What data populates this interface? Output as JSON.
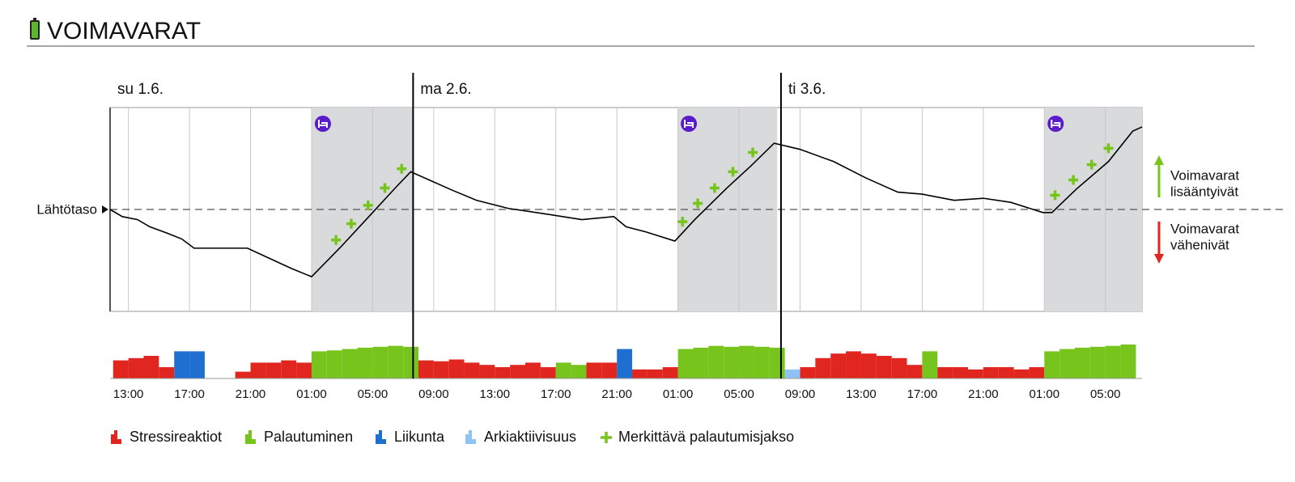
{
  "chart_data": {
    "type": "line",
    "title": "VOIMAVARAT",
    "baseline_label": "Lähtötaso",
    "baseline": 0,
    "xlim": [
      11.8,
      79.4
    ],
    "ylim": [
      -100,
      100
    ],
    "grid": true,
    "xticks": [
      {
        "value": 13,
        "label": "13:00"
      },
      {
        "value": 17,
        "label": "17:00"
      },
      {
        "value": 21,
        "label": "21:00"
      },
      {
        "value": 25,
        "label": "01:00"
      },
      {
        "value": 29,
        "label": "05:00"
      },
      {
        "value": 33,
        "label": "09:00"
      },
      {
        "value": 37,
        "label": "13:00"
      },
      {
        "value": 41,
        "label": "17:00"
      },
      {
        "value": 45,
        "label": "21:00"
      },
      {
        "value": 49,
        "label": "01:00"
      },
      {
        "value": 53,
        "label": "05:00"
      },
      {
        "value": 57,
        "label": "09:00"
      },
      {
        "value": 61,
        "label": "13:00"
      },
      {
        "value": 65,
        "label": "17:00"
      },
      {
        "value": 69,
        "label": "21:00"
      },
      {
        "value": 73,
        "label": "01:00"
      },
      {
        "value": 77,
        "label": "05:00"
      }
    ],
    "days": [
      {
        "label": "su 1.6.",
        "start": 11.8
      },
      {
        "label": "ma 2.6.",
        "start": 31.65
      },
      {
        "label": "ti 3.6.",
        "start": 55.75
      }
    ],
    "sleep": [
      {
        "start": 25.0,
        "end": 31.65
      },
      {
        "start": 48.97,
        "end": 55.5
      },
      {
        "start": 73.0,
        "end": 79.4
      }
    ],
    "line": {
      "color": "#000000",
      "x": [
        11.8,
        12.6,
        13.6,
        14.4,
        15.5,
        16.5,
        17.3,
        20.8,
        22.1,
        23.7,
        25.0,
        26.9,
        29.0,
        30.6,
        31.5,
        32.7,
        34.2,
        35.8,
        37.9,
        40.6,
        42.7,
        44.8,
        45.6,
        46.9,
        48.8,
        50.1,
        52.2,
        53.8,
        55.3,
        57.0,
        59.2,
        61.3,
        63.4,
        65.0,
        67.1,
        69.0,
        70.8,
        72.9,
        73.5,
        75.1,
        77.2,
        78.8,
        79.4
      ],
      "values": [
        0,
        -7,
        -10,
        -17,
        -23,
        -29,
        -38,
        -38,
        -47,
        -58,
        -66,
        -37,
        -3,
        23,
        37,
        29,
        19,
        9,
        1,
        -5,
        -10,
        -7,
        -17,
        -22,
        -31,
        -10,
        21,
        43,
        65,
        59,
        47,
        31,
        17,
        15,
        9,
        11,
        7,
        -3,
        -3,
        20,
        47,
        77,
        81
      ]
    },
    "recovery_points": {
      "legend_index": 4,
      "x": [
        26.6,
        27.6,
        28.7,
        29.8,
        30.9,
        49.3,
        50.3,
        51.4,
        52.6,
        53.9,
        73.7,
        74.9,
        76.1,
        77.2
      ],
      "values": [
        -30,
        -14,
        4,
        21,
        40,
        -12,
        6,
        21,
        37,
        56,
        14,
        29,
        44,
        60
      ]
    },
    "activity": {
      "ylim": [
        0,
        100
      ],
      "x": [
        12,
        13,
        14,
        15,
        16,
        17,
        18,
        19,
        20,
        21,
        22,
        23,
        24,
        25,
        26,
        27,
        28,
        29,
        30,
        31,
        32,
        33,
        34,
        35,
        36,
        37,
        38,
        39,
        40,
        41,
        42,
        43,
        44,
        45,
        46,
        47,
        48,
        49,
        50,
        51,
        52,
        53,
        54,
        55,
        56,
        57,
        58,
        59,
        60,
        61,
        62,
        63,
        64,
        65,
        66,
        67,
        68,
        69,
        70,
        71,
        72,
        73,
        74,
        75,
        76,
        77,
        78
      ],
      "values": [
        40,
        45,
        50,
        25,
        60,
        60,
        0,
        0,
        15,
        35,
        35,
        40,
        35,
        60,
        62,
        65,
        68,
        70,
        72,
        70,
        40,
        38,
        42,
        35,
        30,
        25,
        30,
        35,
        25,
        35,
        30,
        35,
        35,
        65,
        20,
        20,
        25,
        65,
        68,
        72,
        70,
        72,
        70,
        68,
        20,
        25,
        45,
        55,
        60,
        55,
        50,
        45,
        30,
        60,
        25,
        25,
        20,
        25,
        25,
        20,
        25,
        60,
        65,
        68,
        70,
        72,
        75
      ],
      "kind": [
        0,
        0,
        0,
        0,
        2,
        2,
        0,
        0,
        0,
        0,
        0,
        0,
        0,
        1,
        1,
        1,
        1,
        1,
        1,
        1,
        0,
        0,
        0,
        0,
        0,
        0,
        0,
        0,
        0,
        1,
        1,
        0,
        0,
        2,
        0,
        0,
        0,
        1,
        1,
        1,
        1,
        1,
        1,
        1,
        3,
        0,
        0,
        0,
        0,
        0,
        0,
        0,
        0,
        1,
        0,
        0,
        0,
        0,
        0,
        0,
        0,
        1,
        1,
        1,
        1,
        1,
        1
      ]
    },
    "legend": [
      {
        "name": "Stressireaktiot",
        "color": "#e0261f"
      },
      {
        "name": "Palautuminen",
        "color": "#77c41c"
      },
      {
        "name": "Liikunta",
        "color": "#1f6fd0"
      },
      {
        "name": "Arkiaktiivisuus",
        "color": "#8fc2f5"
      },
      {
        "name": "Merkittävä palautumisjakso",
        "color": "#77c41c"
      }
    ],
    "up_label": {
      "lines": [
        "Voimavarat",
        "lisääntyivät"
      ],
      "color": "#77c41c"
    },
    "down_label": {
      "lines": [
        "Voimavarat",
        "vähenivät"
      ],
      "color": "#e0261f"
    }
  }
}
